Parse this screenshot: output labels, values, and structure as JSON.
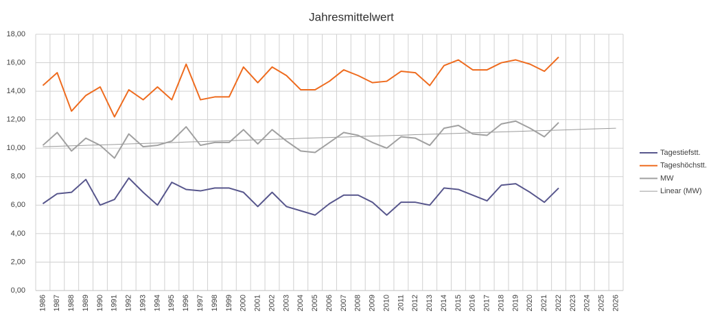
{
  "chart_data": {
    "type": "line",
    "title": "Jahresmittelwert",
    "categories": [
      "1986",
      "1987",
      "1988",
      "1989",
      "1990",
      "1991",
      "1992",
      "1993",
      "1994",
      "1995",
      "1996",
      "1997",
      "1998",
      "1999",
      "2000",
      "2001",
      "2002",
      "2003",
      "2004",
      "2005",
      "2006",
      "2007",
      "2008",
      "2009",
      "2010",
      "2011",
      "2012",
      "2013",
      "2014",
      "2015",
      "2016",
      "2017",
      "2018",
      "2019",
      "2020",
      "2021",
      "2022",
      "2023",
      "2024",
      "2025",
      "2026"
    ],
    "series": [
      {
        "name": "Tagestiefstt.",
        "color": "#57568c",
        "width": 2,
        "values": [
          6.1,
          6.8,
          6.9,
          7.8,
          6.0,
          6.4,
          7.9,
          6.9,
          6.0,
          7.6,
          7.1,
          7.0,
          7.2,
          7.2,
          6.9,
          5.9,
          6.9,
          5.9,
          5.6,
          5.3,
          6.1,
          6.7,
          6.7,
          6.2,
          5.3,
          6.2,
          6.2,
          6.0,
          7.2,
          7.1,
          6.7,
          6.3,
          7.4,
          7.5,
          6.9,
          6.2,
          7.2,
          null,
          null,
          null,
          null
        ]
      },
      {
        "name": "Tageshöchstt.",
        "color": "#ee6b1e",
        "width": 2,
        "values": [
          14.4,
          15.3,
          12.6,
          13.7,
          14.3,
          12.2,
          14.1,
          13.4,
          14.3,
          13.4,
          15.9,
          13.4,
          13.6,
          13.6,
          15.7,
          14.6,
          15.7,
          15.1,
          14.1,
          14.1,
          14.7,
          15.5,
          15.1,
          14.6,
          14.7,
          15.4,
          15.3,
          14.4,
          15.8,
          16.2,
          15.5,
          15.5,
          16.0,
          16.2,
          15.9,
          15.4,
          16.4,
          null,
          null,
          null,
          null
        ]
      },
      {
        "name": "MW",
        "color": "#a0a0a0",
        "width": 2,
        "values": [
          10.2,
          11.1,
          9.8,
          10.7,
          10.2,
          9.3,
          11.0,
          10.1,
          10.2,
          10.5,
          11.5,
          10.2,
          10.4,
          10.4,
          11.3,
          10.3,
          11.3,
          10.5,
          9.8,
          9.7,
          10.4,
          11.1,
          10.9,
          10.4,
          10.0,
          10.8,
          10.7,
          10.2,
          11.4,
          11.6,
          11.0,
          10.9,
          11.7,
          11.9,
          11.4,
          10.8,
          11.8,
          null,
          null,
          null,
          null
        ]
      },
      {
        "name": "Linear (MW)",
        "color": "#9a9a9a",
        "width": 1,
        "values": [
          10.1,
          10.13,
          10.17,
          10.2,
          10.23,
          10.26,
          10.3,
          10.33,
          10.36,
          10.39,
          10.43,
          10.46,
          10.49,
          10.52,
          10.56,
          10.59,
          10.62,
          10.65,
          10.69,
          10.72,
          10.75,
          10.78,
          10.82,
          10.85,
          10.88,
          10.91,
          10.95,
          10.98,
          11.01,
          11.04,
          11.08,
          11.11,
          11.14,
          11.17,
          11.21,
          11.24,
          11.27,
          11.3,
          11.34,
          11.37,
          11.4
        ]
      }
    ],
    "ylim": [
      0,
      18
    ],
    "yticks": [
      {
        "value": 0,
        "label": "0,00"
      },
      {
        "value": 2,
        "label": "2,00"
      },
      {
        "value": 4,
        "label": "4,00"
      },
      {
        "value": 6,
        "label": "6,00"
      },
      {
        "value": 8,
        "label": "8,00"
      },
      {
        "value": 10,
        "label": "10,00"
      },
      {
        "value": 12,
        "label": "12,00"
      },
      {
        "value": 14,
        "label": "14,00"
      },
      {
        "value": 16,
        "label": "16,00"
      },
      {
        "value": 18,
        "label": "18,00"
      }
    ],
    "grid": true,
    "legend": "right"
  }
}
